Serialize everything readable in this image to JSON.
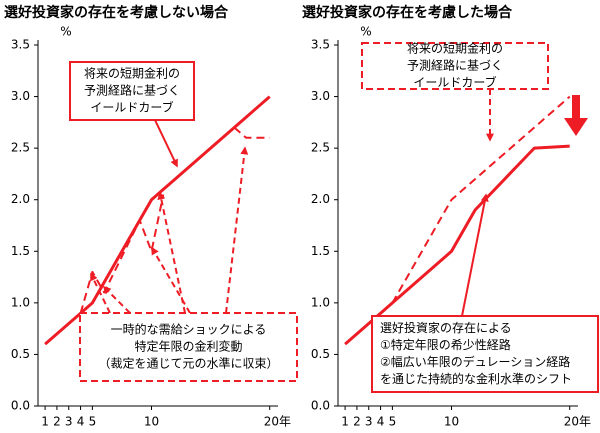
{
  "chart_data": [
    {
      "type": "line",
      "title": "選好投資家の存在を考慮しない場合",
      "y_unit": "%",
      "x": [
        1,
        4,
        5,
        6,
        9,
        10,
        11,
        12,
        17,
        18,
        20
      ],
      "series": [
        {
          "color": "#ee1c25",
          "dashed": false,
          "values": [
            0.6,
            0.9,
            1.0,
            1.2,
            1.8,
            2.0,
            2.1,
            2.2,
            2.7,
            2.8,
            3.0
          ]
        },
        {
          "color": "#ee1c25",
          "dashed": true,
          "values": [
            null,
            0.9,
            1.3,
            1.1,
            1.8,
            1.5,
            2.05,
            null,
            2.7,
            2.6,
            2.6
          ]
        }
      ],
      "xlim": [
        0.4,
        20.7
      ],
      "xticks": [
        1,
        2,
        3,
        4,
        5,
        10,
        {
          "value": 20,
          "label": "20年"
        }
      ],
      "ylim": [
        0,
        3.5
      ],
      "yticks": [
        {
          "value": 0,
          "label": "0.0"
        },
        0.5,
        {
          "value": 1,
          "label": "1.0"
        },
        1.5,
        {
          "value": 2,
          "label": "2.0"
        },
        2.5,
        {
          "value": 3,
          "label": "3.0"
        },
        3.5
      ],
      "annotations": [
        {
          "border": "solid",
          "lines": [
            "将来の短期金利の",
            "予測経路に基づく",
            "イールドカーブ"
          ]
        },
        {
          "border": "dashed",
          "lines": [
            "一時的な需給ショックによる",
            "特定年限の金利変動",
            "（裁定を通じて元の水準に収束）"
          ]
        }
      ]
    },
    {
      "type": "line",
      "title": "選好投資家の存在を考慮した場合",
      "y_unit": "%",
      "x": [
        1,
        5,
        10,
        12,
        17,
        20
      ],
      "series": [
        {
          "color": "#ee1c25",
          "dashed": true,
          "values": [
            null,
            1.0,
            2.0,
            2.2,
            2.7,
            3.0
          ]
        },
        {
          "color": "#ee1c25",
          "dashed": false,
          "values": [
            0.6,
            1.0,
            1.5,
            1.9,
            2.5,
            2.52
          ]
        }
      ],
      "xlim": [
        0.4,
        20.7
      ],
      "xticks": [
        1,
        2,
        3,
        4,
        5,
        10,
        {
          "value": 20,
          "label": "20年"
        }
      ],
      "ylim": [
        0,
        3.5
      ],
      "yticks": [
        {
          "value": 0,
          "label": "0.0"
        },
        0.5,
        {
          "value": 1,
          "label": "1.0"
        },
        1.5,
        {
          "value": 2,
          "label": "2.0"
        },
        2.5,
        {
          "value": 3,
          "label": "3.0"
        },
        3.5
      ],
      "annotations": [
        {
          "border": "dashed",
          "lines": [
            "将来の短期金利の",
            "予測経路に基づく",
            "イールドカーブ"
          ]
        },
        {
          "border": "solid",
          "lines": [
            "選好投資家の存在による",
            "①特定年限の希少性経路",
            "②幅広い年限のデュレーション経路",
            "を通じた持続的な金利水準のシフト"
          ]
        }
      ]
    }
  ]
}
